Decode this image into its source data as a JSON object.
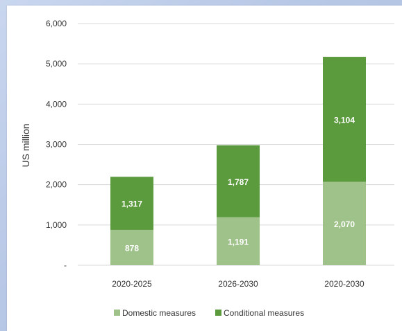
{
  "chart_data": {
    "type": "bar",
    "stacked": true,
    "categories": [
      "2020-2025",
      "2026-2030",
      "2020-2030"
    ],
    "series": [
      {
        "name": "Domestic measures",
        "values": [
          878,
          1191,
          2070
        ],
        "color": "#9fc28a"
      },
      {
        "name": "Conditional measures",
        "values": [
          1317,
          1787,
          3104
        ],
        "color": "#5b9a3d"
      }
    ],
    "data_labels": [
      [
        "878",
        "1,191",
        "2,070"
      ],
      [
        "1,317",
        "1,787",
        "3,104"
      ]
    ],
    "ylabel": "US million",
    "ylim": [
      0,
      6000
    ],
    "yticks": [
      0,
      1000,
      2000,
      3000,
      4000,
      5000,
      6000
    ],
    "ytick_labels": [
      "-",
      "1,000",
      "2,000",
      "3,000",
      "4,000",
      "5,000",
      "6,000"
    ],
    "grid": true,
    "legend_position": "bottom"
  }
}
